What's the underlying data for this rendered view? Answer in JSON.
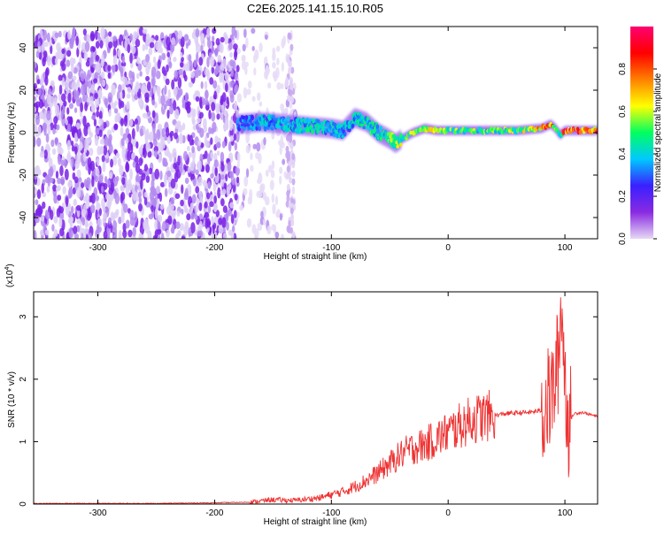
{
  "title": "C2E6.2025.141.15.10.R05",
  "chart_data": [
    {
      "type": "heatmap",
      "description_id": "spectrogram",
      "xlabel": "Height of straight line (km)",
      "ylabel": "Frequency (Hz)",
      "xlim": [
        -355,
        128
      ],
      "ylim": [
        -50,
        50
      ],
      "x_ticks": [
        -300,
        -200,
        -100,
        0,
        100
      ],
      "y_ticks": [
        -40,
        -20,
        0,
        20,
        40
      ],
      "grid": false,
      "colorbar": {
        "label": "Normalized spectral amplitude",
        "range": [
          0.0,
          1.0
        ],
        "ticks": [
          0.0,
          0.2,
          0.4,
          0.6,
          0.8
        ],
        "colormap": [
          "#e6d8f5",
          "#8a2be2",
          "#3a20ff",
          "#00c8ff",
          "#00ff60",
          "#ffff00",
          "#ff8000",
          "#ff0000",
          "#ff0070"
        ]
      },
      "regions": [
        {
          "name": "noise",
          "x_range": [
            -355,
            -180
          ],
          "freq_range": [
            -50,
            48
          ],
          "amplitude": 0.15
        },
        {
          "name": "faint-noise",
          "x_range": [
            -180,
            -130
          ],
          "freq_range": [
            -50,
            48
          ],
          "amplitude": 0.05
        }
      ],
      "ridge": {
        "x": [
          -180,
          -160,
          -140,
          -120,
          -100,
          -90,
          -80,
          -70,
          -60,
          -50,
          -45,
          -40,
          -30,
          -20,
          -10,
          0,
          20,
          40,
          60,
          80,
          88,
          92,
          96,
          100,
          110,
          128
        ],
        "freq": [
          4,
          5,
          4,
          3,
          2,
          1,
          7,
          5,
          0,
          -3,
          -5,
          -3,
          0,
          2,
          1,
          1,
          1,
          1,
          1,
          2,
          4,
          2,
          -1,
          1,
          1,
          1
        ],
        "amplitude": [
          0.35,
          0.4,
          0.42,
          0.45,
          0.45,
          0.4,
          0.45,
          0.5,
          0.5,
          0.55,
          0.6,
          0.6,
          0.65,
          0.7,
          0.75,
          0.6,
          0.55,
          0.55,
          0.6,
          0.75,
          0.9,
          0.6,
          0.5,
          0.95,
          0.9,
          0.95
        ]
      }
    },
    {
      "type": "line",
      "description_id": "snr",
      "xlabel": "Height of straight line (km)",
      "ylabel": "SNR (10 * v/v)",
      "multiplier_label": "(x10",
      "multiplier_exponent": "4",
      "multiplier_close": ")",
      "xlim": [
        -355,
        128
      ],
      "ylim": [
        0,
        3.4
      ],
      "x_ticks": [
        -300,
        -200,
        -100,
        0,
        100
      ],
      "y_ticks": [
        0,
        1,
        2,
        3
      ],
      "color": "#ee3333",
      "grid": false,
      "series": [
        {
          "x": [
            -355,
            -300,
            -250,
            -200,
            -170,
            -160,
            -150,
            -140,
            -130,
            -120,
            -110,
            -100,
            -90,
            -80,
            -70,
            -60,
            -50,
            -40,
            -30,
            -20,
            -10,
            0,
            10,
            20,
            30,
            40,
            50,
            60,
            70,
            80,
            85,
            90,
            95,
            97,
            100,
            103,
            108,
            115,
            128
          ],
          "y": [
            0.01,
            0.01,
            0.01,
            0.02,
            0.03,
            0.05,
            0.07,
            0.06,
            0.06,
            0.08,
            0.1,
            0.15,
            0.2,
            0.28,
            0.38,
            0.5,
            0.65,
            0.8,
            0.9,
            0.95,
            1.05,
            1.15,
            1.25,
            1.35,
            1.4,
            1.42,
            1.45,
            1.46,
            1.47,
            1.5,
            1.6,
            1.8,
            2.4,
            3.35,
            2.0,
            1.3,
            1.45,
            1.47,
            1.4
          ]
        }
      ]
    }
  ]
}
